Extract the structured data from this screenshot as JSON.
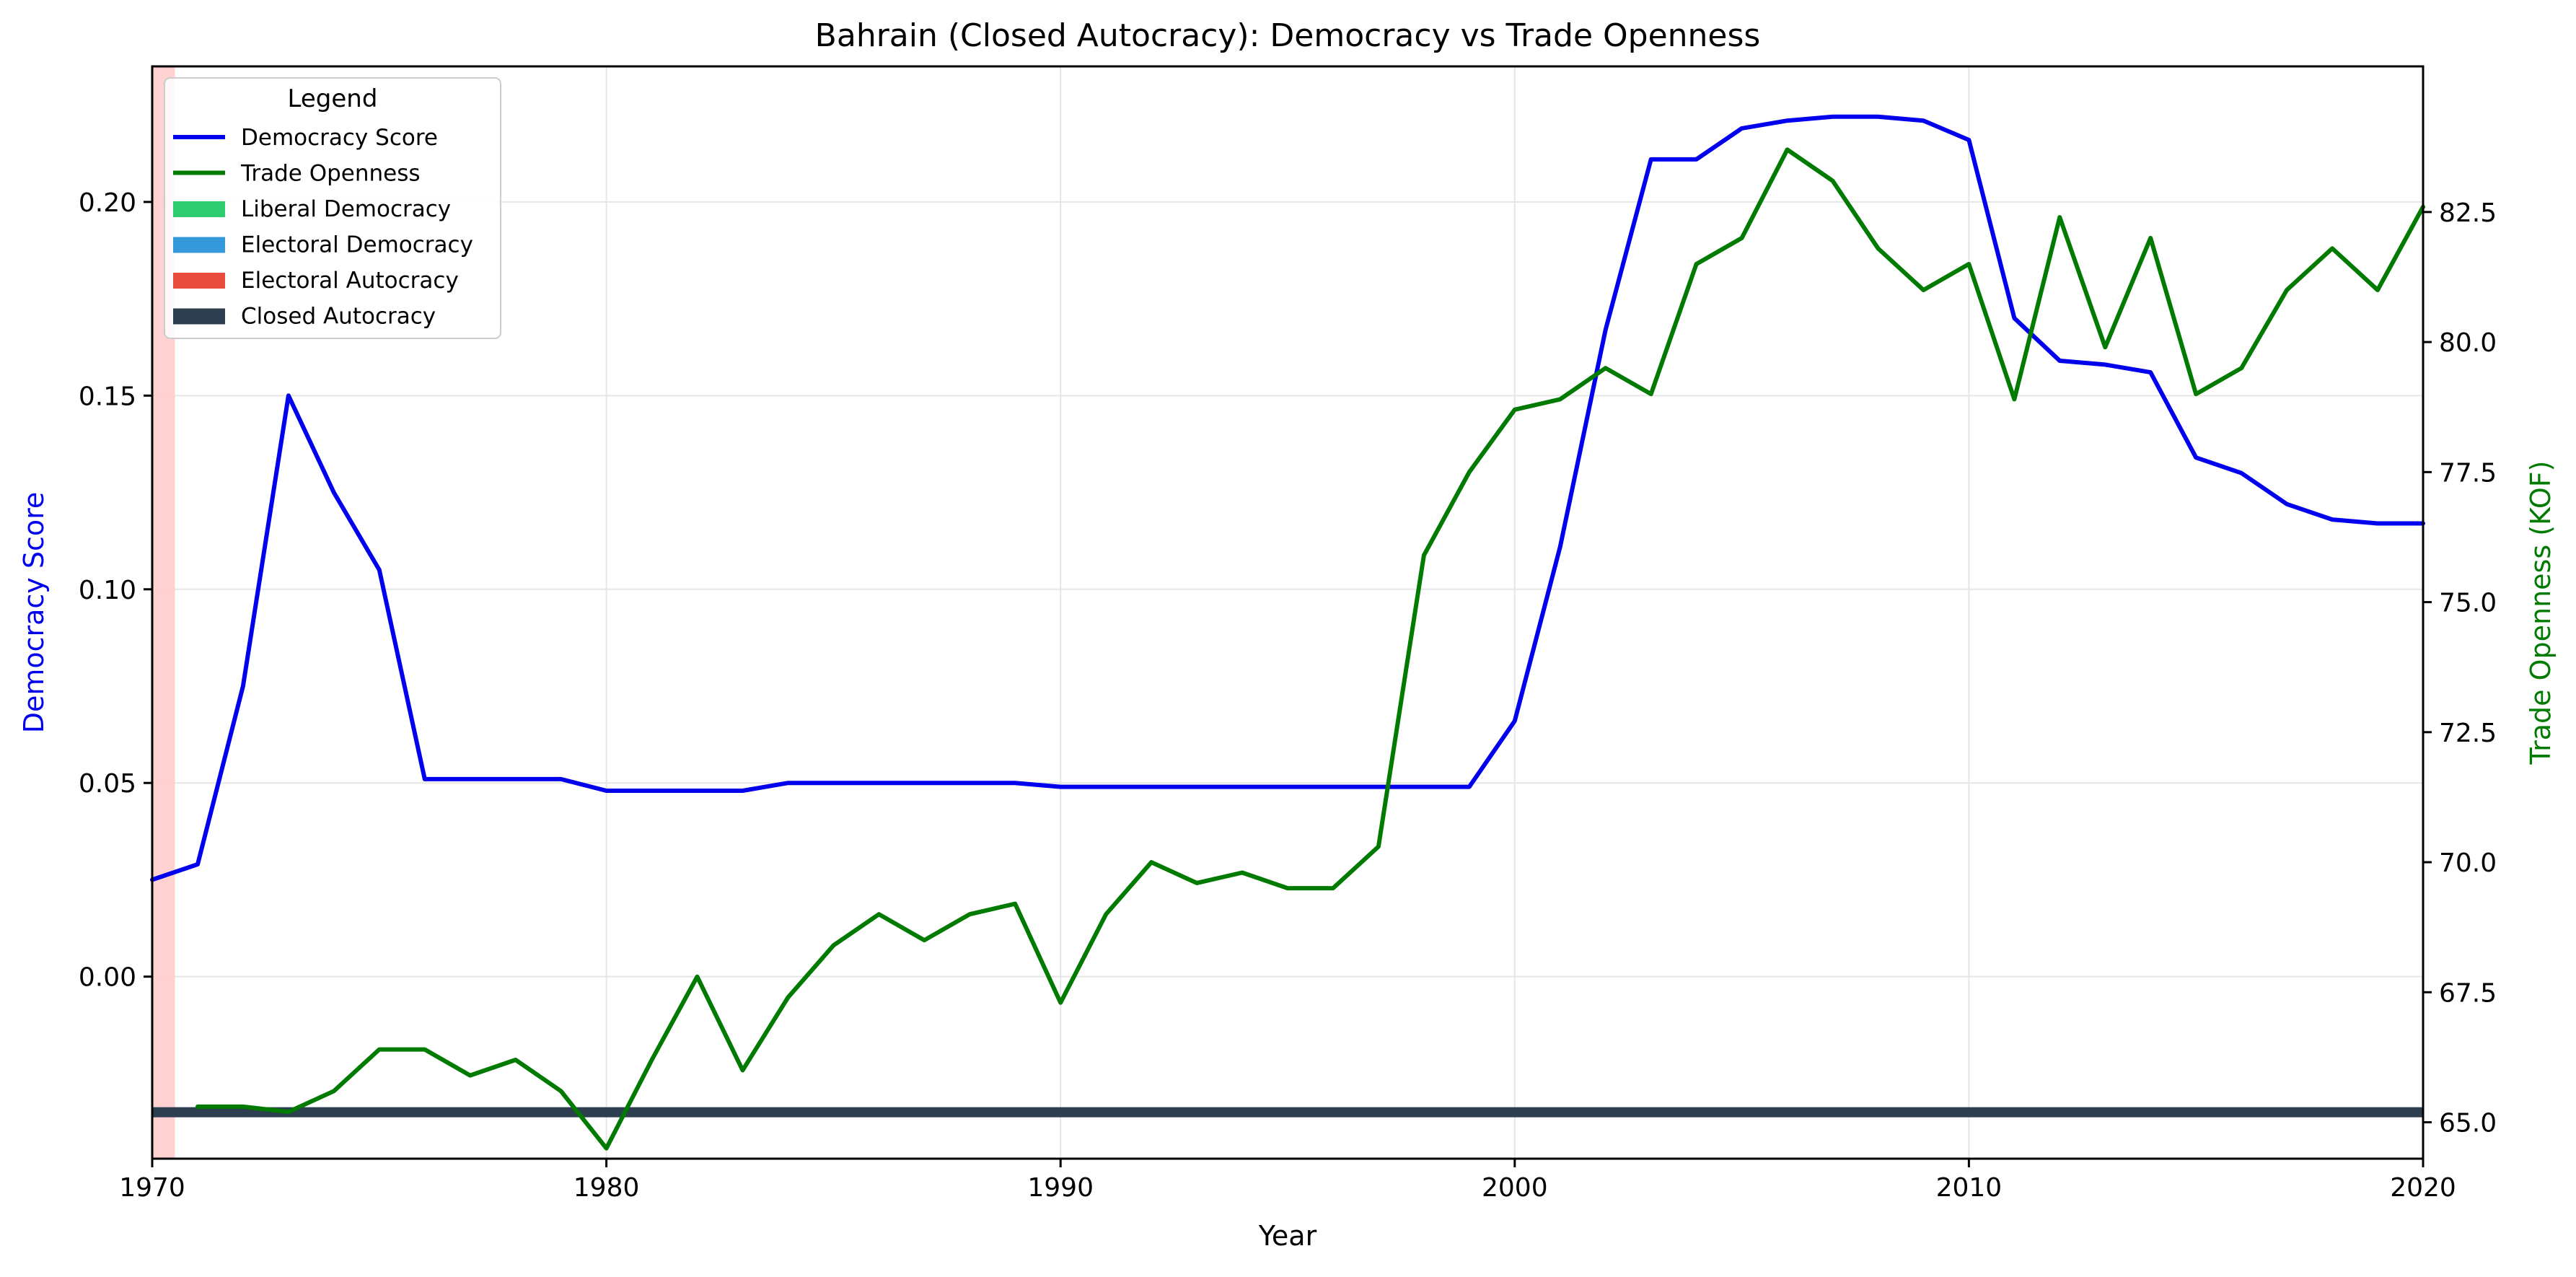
{
  "chart_data": {
    "type": "line",
    "title": "Bahrain (Closed Autocracy): Democracy vs Trade Openness",
    "xlabel": "Year",
    "ylabel_left": "Democracy Score",
    "ylabel_right": "Trade Openness (KOF)",
    "xlim": [
      1970,
      2020
    ],
    "ylim_left": [
      -0.047,
      0.235
    ],
    "ylim_right": [
      64.3,
      85.3
    ],
    "x_ticks": [
      1970,
      1980,
      1990,
      2000,
      2010,
      2020
    ],
    "y_left_ticks": [
      "0.00",
      "0.05",
      "0.10",
      "0.15",
      "0.20"
    ],
    "y_left_tick_values": [
      0.0,
      0.05,
      0.1,
      0.15,
      0.2
    ],
    "y_right_ticks": [
      "65.0",
      "67.5",
      "70.0",
      "72.5",
      "75.0",
      "77.5",
      "80.0",
      "82.5"
    ],
    "y_right_tick_values": [
      65.0,
      67.5,
      70.0,
      72.5,
      75.0,
      77.5,
      80.0,
      82.5
    ],
    "grid": true,
    "legend": {
      "title": "Legend",
      "placement": "upper-left",
      "entries": [
        {
          "label": "Democracy Score",
          "kind": "line",
          "color": "#0000ee"
        },
        {
          "label": "Trade Openness",
          "kind": "line",
          "color": "#007a00"
        },
        {
          "label": "Liberal Democracy",
          "kind": "patch",
          "color": "#2ecc71"
        },
        {
          "label": "Electoral Democracy",
          "kind": "patch",
          "color": "#3498db"
        },
        {
          "label": "Electoral Autocracy",
          "kind": "patch",
          "color": "#e74c3c"
        },
        {
          "label": "Closed Autocracy",
          "kind": "patch",
          "color": "#2c3e50"
        }
      ]
    },
    "regime_bands": [
      {
        "regime": "Electoral Autocracy",
        "x_start": 1970,
        "x_end": 1970.5,
        "color": "#ffcccc"
      }
    ],
    "regime_baseline": {
      "regime": "Closed Autocracy",
      "x_start": 1970,
      "x_end": 2020,
      "y_left": -0.035,
      "color": "#2c3e50"
    },
    "series": [
      {
        "name": "Democracy Score",
        "axis": "left",
        "color": "#0000ee",
        "x": [
          1970,
          1971,
          1972,
          1973,
          1974,
          1975,
          1976,
          1977,
          1978,
          1979,
          1980,
          1981,
          1982,
          1983,
          1984,
          1985,
          1986,
          1987,
          1988,
          1989,
          1990,
          1991,
          1992,
          1993,
          1994,
          1995,
          1996,
          1997,
          1998,
          1999,
          2000,
          2001,
          2002,
          2003,
          2004,
          2005,
          2006,
          2007,
          2008,
          2009,
          2010,
          2011,
          2012,
          2013,
          2014,
          2015,
          2016,
          2017,
          2018,
          2019,
          2020
        ],
        "values": [
          0.025,
          0.029,
          0.075,
          0.15,
          0.125,
          0.105,
          0.051,
          0.051,
          0.051,
          0.051,
          0.048,
          0.048,
          0.048,
          0.048,
          0.05,
          0.05,
          0.05,
          0.05,
          0.05,
          0.05,
          0.049,
          0.049,
          0.049,
          0.049,
          0.049,
          0.049,
          0.049,
          0.049,
          0.049,
          0.049,
          0.066,
          0.111,
          0.167,
          0.211,
          0.211,
          0.219,
          0.221,
          0.222,
          0.222,
          0.221,
          0.216,
          0.17,
          0.159,
          0.158,
          0.156,
          0.134,
          0.13,
          0.122,
          0.118,
          0.117,
          0.117
        ]
      },
      {
        "name": "Trade Openness",
        "axis": "right",
        "color": "#007a00",
        "x": [
          1971,
          1972,
          1973,
          1974,
          1975,
          1976,
          1977,
          1978,
          1979,
          1980,
          1981,
          1982,
          1983,
          1984,
          1985,
          1986,
          1987,
          1988,
          1989,
          1990,
          1991,
          1992,
          1993,
          1994,
          1995,
          1996,
          1997,
          1998,
          1999,
          2000,
          2001,
          2002,
          2003,
          2004,
          2005,
          2006,
          2007,
          2008,
          2009,
          2010,
          2011,
          2012,
          2013,
          2014,
          2015,
          2016,
          2017,
          2018,
          2019,
          2020
        ],
        "values": [
          65.3,
          65.3,
          65.2,
          65.6,
          66.4,
          66.4,
          65.9,
          66.2,
          65.6,
          64.5,
          66.2,
          67.8,
          66.0,
          67.4,
          68.4,
          69.0,
          68.5,
          69.0,
          69.2,
          67.3,
          69.0,
          70.0,
          69.6,
          69.8,
          69.5,
          69.5,
          70.3,
          75.9,
          77.5,
          78.7,
          78.9,
          79.5,
          79.0,
          81.5,
          82.0,
          83.7,
          83.1,
          81.8,
          81.0,
          81.5,
          78.9,
          82.4,
          79.9,
          82.0,
          79.0,
          79.5,
          81.0,
          81.8,
          81.0,
          82.6
        ]
      }
    ]
  }
}
